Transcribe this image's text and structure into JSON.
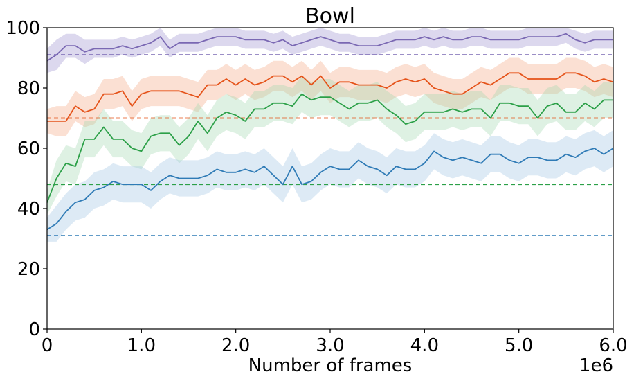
{
  "chart_data": {
    "type": "line",
    "title": "Bowl",
    "xlabel": "Number of frames",
    "ylabel": "",
    "x_offset_label": "1e6",
    "xlim": [
      0,
      6.0
    ],
    "ylim": [
      0,
      100
    ],
    "x_ticks": [
      "0",
      "1.0",
      "2.0",
      "3.0",
      "4.0",
      "5.0",
      "6.0"
    ],
    "y_ticks": [
      "0",
      "20",
      "40",
      "60",
      "80",
      "100"
    ],
    "grid": false,
    "legend": "none",
    "x": [
      0.0,
      0.1,
      0.2,
      0.3,
      0.4,
      0.5,
      0.6,
      0.7,
      0.8,
      0.9,
      1.0,
      1.1,
      1.2,
      1.3,
      1.4,
      1.5,
      1.6,
      1.7,
      1.8,
      1.9,
      2.0,
      2.1,
      2.2,
      2.3,
      2.4,
      2.5,
      2.6,
      2.7,
      2.8,
      2.9,
      3.0,
      3.1,
      3.2,
      3.3,
      3.4,
      3.5,
      3.6,
      3.7,
      3.8,
      3.9,
      4.0,
      4.1,
      4.2,
      4.3,
      4.4,
      4.5,
      4.6,
      4.7,
      4.8,
      4.9,
      5.0,
      5.1,
      5.2,
      5.3,
      5.4,
      5.5,
      5.6,
      5.7,
      5.8,
      5.9,
      6.0
    ],
    "series": [
      {
        "color": "#7a68b3",
        "band_color": "#9a8fcf",
        "baseline": 91,
        "values": [
          89,
          91,
          94,
          94,
          92,
          93,
          93,
          93,
          94,
          93,
          94,
          95,
          97,
          93,
          95,
          95,
          95,
          96,
          97,
          97,
          97,
          96,
          96,
          96,
          95,
          96,
          94,
          95,
          96,
          97,
          96,
          95,
          95,
          94,
          94,
          94,
          95,
          96,
          96,
          96,
          97,
          96,
          97,
          96,
          96,
          97,
          97,
          96,
          96,
          96,
          96,
          97,
          97,
          97,
          97,
          98,
          96,
          95,
          96,
          96,
          96
        ],
        "band": [
          4,
          5,
          4,
          4,
          4,
          3,
          3,
          3,
          3,
          3,
          3,
          3,
          3,
          3,
          3,
          3,
          3,
          3,
          3,
          3,
          3,
          3,
          3,
          3,
          3,
          3,
          3,
          3,
          3,
          3,
          3,
          3,
          3,
          3,
          3,
          3,
          3,
          3,
          3,
          3,
          3,
          3,
          3,
          3,
          3,
          3,
          3,
          3,
          3,
          3,
          3,
          3,
          3,
          3,
          3,
          3,
          3,
          3,
          3,
          3,
          3
        ]
      },
      {
        "color": "#e5531a",
        "band_color": "#f4a582",
        "baseline": 70,
        "values": [
          69,
          69,
          69,
          74,
          72,
          73,
          78,
          78,
          79,
          74,
          78,
          79,
          79,
          79,
          79,
          78,
          77,
          81,
          81,
          83,
          81,
          83,
          81,
          82,
          84,
          84,
          82,
          84,
          81,
          84,
          80,
          82,
          82,
          81,
          81,
          81,
          80,
          82,
          83,
          82,
          83,
          80,
          79,
          78,
          78,
          80,
          82,
          81,
          83,
          85,
          85,
          83,
          83,
          83,
          83,
          85,
          85,
          84,
          82,
          83,
          82
        ],
        "band": [
          4,
          5,
          5,
          5,
          5,
          5,
          5,
          5,
          5,
          5,
          5,
          5,
          5,
          5,
          5,
          5,
          5,
          5,
          5,
          5,
          5,
          5,
          5,
          5,
          5,
          5,
          5,
          5,
          5,
          5,
          5,
          5,
          5,
          5,
          5,
          5,
          5,
          5,
          5,
          5,
          5,
          5,
          5,
          5,
          5,
          5,
          5,
          5,
          5,
          5,
          5,
          5,
          5,
          5,
          5,
          5,
          5,
          5,
          5,
          5,
          5
        ]
      },
      {
        "color": "#2ca048",
        "band_color": "#a1d8ae",
        "baseline": 48,
        "values": [
          42,
          50,
          55,
          54,
          63,
          63,
          67,
          63,
          63,
          60,
          59,
          64,
          65,
          65,
          61,
          64,
          69,
          65,
          70,
          72,
          71,
          69,
          73,
          73,
          75,
          75,
          74,
          78,
          76,
          77,
          77,
          75,
          73,
          75,
          75,
          76,
          73,
          71,
          68,
          69,
          72,
          72,
          72,
          73,
          72,
          73,
          73,
          70,
          75,
          75,
          74,
          74,
          70,
          74,
          75,
          72,
          72,
          75,
          73,
          76,
          76
        ],
        "band": [
          4,
          6,
          6,
          6,
          6,
          6,
          6,
          6,
          6,
          6,
          6,
          6,
          6,
          6,
          6,
          6,
          6,
          6,
          6,
          6,
          6,
          6,
          6,
          6,
          6,
          6,
          6,
          6,
          6,
          6,
          6,
          6,
          6,
          6,
          6,
          6,
          6,
          6,
          6,
          6,
          6,
          6,
          6,
          6,
          6,
          6,
          6,
          6,
          6,
          6,
          6,
          6,
          6,
          6,
          6,
          6,
          6,
          6,
          6,
          6,
          6
        ]
      },
      {
        "color": "#2f7bb6",
        "band_color": "#9ec4e3",
        "baseline": 31,
        "values": [
          33,
          35,
          39,
          42,
          43,
          46,
          47,
          49,
          48,
          48,
          48,
          46,
          49,
          51,
          50,
          50,
          50,
          51,
          53,
          52,
          52,
          53,
          52,
          54,
          51,
          48,
          54,
          48,
          49,
          52,
          54,
          53,
          53,
          56,
          54,
          53,
          51,
          54,
          53,
          53,
          55,
          59,
          57,
          56,
          57,
          56,
          55,
          58,
          58,
          56,
          55,
          57,
          57,
          56,
          56,
          58,
          57,
          59,
          60,
          58,
          60
        ],
        "band": [
          4,
          6,
          6,
          6,
          6,
          6,
          6,
          6,
          6,
          6,
          6,
          6,
          6,
          6,
          6,
          6,
          6,
          6,
          6,
          6,
          6,
          6,
          6,
          6,
          6,
          6,
          6,
          6,
          6,
          6,
          6,
          6,
          6,
          6,
          6,
          6,
          6,
          6,
          6,
          6,
          6,
          6,
          6,
          6,
          6,
          6,
          6,
          6,
          6,
          6,
          6,
          6,
          6,
          6,
          6,
          6,
          6,
          6,
          6,
          6,
          6
        ]
      }
    ]
  }
}
